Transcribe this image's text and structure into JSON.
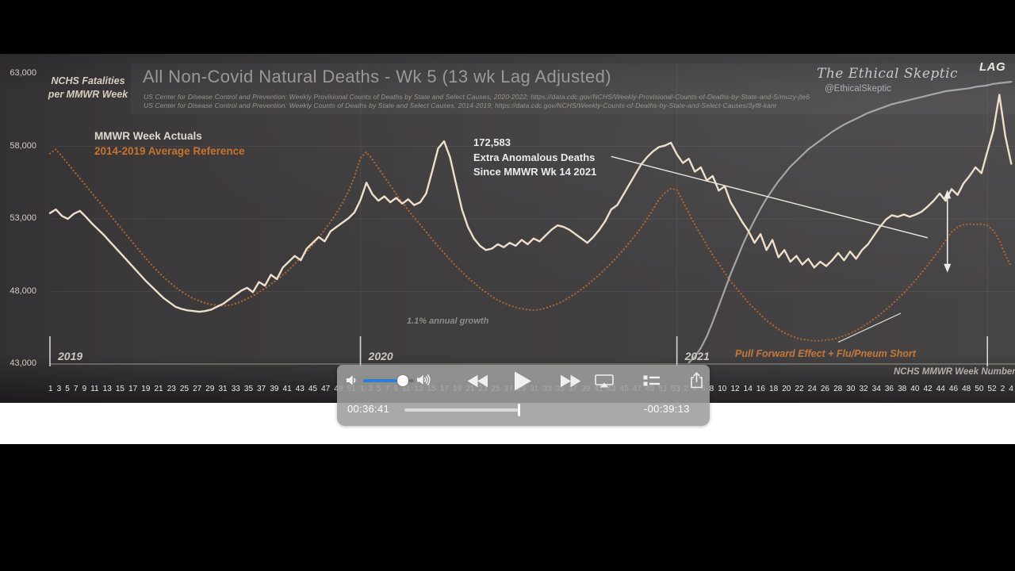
{
  "chart": {
    "title": "All Non-Covid Natural Deaths - Wk 5 (13 wk Lag Adjusted)",
    "source_line1": "US Center for Disease Control and Prevention: Weekly  Provisional Counts of Deaths by State and Select Causes, 2020-2022; https://data.cdc.gov/NCHS/Weekly-Provisional-Counts-of-Deaths-by-State-and-S/muzy-jte6",
    "source_line2": "US Center for Disease Control and Prevention: Weekly  Counts of Deaths by State and Select Causes, 2014-2019; https://data.cdc.gov/NCHS/Weekly-Counts-of-Deaths-by-State-and-Select-Causes/3yf8-kanr",
    "watermark": "The Ethical Skeptic",
    "watermark_handle": "@EthicalSkeptic",
    "corner_tag": "LAG",
    "y_axis_title_line1": "NCHS Fatalities",
    "y_axis_title_line2": "per MMWR Week",
    "legend": [
      {
        "label": "MMWR Week Actuals",
        "color": "#ded8cd"
      },
      {
        "label": "2014-2019  Average Reference",
        "color": "#c5742f"
      }
    ],
    "annotation_line1": "172,583",
    "annotation_line2": "Extra Anomalous Deaths",
    "annotation_line3": "Since MMWR Wk 14 2021",
    "growth_note": "1.1% annual growth",
    "pull_forward_note": "Pull Forward Effect + Flu/Pneum Short",
    "x_axis_title": "NCHS MMWR Week Number"
  },
  "chart_data": {
    "type": "line",
    "title": "All Non-Covid Natural Deaths - Wk 5 (13 wk Lag Adjusted)",
    "ylabel": "NCHS Fatalities per MMWR Week",
    "xlabel": "NCHS MMWR Week Number",
    "ylim": [
      43000,
      63000
    ],
    "grid": "faint horizontal at 5,000 steps, vertical at year starts",
    "legend_position": "top-left inside plot",
    "y_ticks": [
      {
        "label": "63,000",
        "value": 63000
      },
      {
        "label": "58,000",
        "value": 58000
      },
      {
        "label": "53,000",
        "value": 53000
      },
      {
        "label": "48,000",
        "value": 48000
      },
      {
        "label": "43,000",
        "value": 43000
      }
    ],
    "years": [
      {
        "label": "2019",
        "week_index": 0
      },
      {
        "label": "2020",
        "week_index": 52
      },
      {
        "label": "2021",
        "week_index": 105
      }
    ],
    "year_ticks": [
      0,
      52,
      105,
      157
    ],
    "week_labels": [
      "1",
      "3",
      "5",
      "7",
      "9",
      "11",
      "13",
      "15",
      "17",
      "19",
      "21",
      "23",
      "25",
      "27",
      "29",
      "31",
      "33",
      "35",
      "37",
      "39",
      "41",
      "43",
      "45",
      "47",
      "49",
      "51",
      "1",
      "3",
      "5",
      "7",
      "9",
      "11",
      "13",
      "15",
      "17",
      "19",
      "21",
      "23",
      "25",
      "27",
      "29",
      "31",
      "33",
      "35",
      "37",
      "39",
      "41",
      "43",
      "45",
      "47",
      "49",
      "51",
      "53",
      "2",
      "4",
      "6",
      "8",
      "10",
      "12",
      "14",
      "16",
      "18",
      "20",
      "22",
      "24",
      "26",
      "28",
      "30",
      "32",
      "34",
      "36",
      "38",
      "40",
      "42",
      "44",
      "46",
      "48",
      "50",
      "52",
      "2",
      "4"
    ],
    "series": [
      {
        "name": "2014-2019 Average Reference",
        "color": "#b06a35",
        "style": "dotted",
        "width": 2.2,
        "opacity": 0.95,
        "start_index": 0,
        "values": [
          57500,
          57800,
          57300,
          56800,
          56300,
          55800,
          55300,
          54800,
          54300,
          53800,
          53300,
          52800,
          52300,
          51800,
          51300,
          50800,
          50300,
          49850,
          49400,
          49000,
          48650,
          48300,
          48000,
          47750,
          47500,
          47350,
          47200,
          47100,
          47050,
          47000,
          47050,
          47150,
          47300,
          47500,
          47700,
          47950,
          48200,
          48500,
          48800,
          49150,
          49500,
          49900,
          50300,
          50750,
          51200,
          51700,
          52250,
          52800,
          53400,
          54100,
          54900,
          55900,
          57200,
          57600,
          57100,
          56500,
          55900,
          55300,
          54700,
          54150,
          53600,
          53100,
          52600,
          52100,
          51600,
          51100,
          50650,
          50200,
          49750,
          49350,
          48950,
          48600,
          48250,
          47950,
          47650,
          47400,
          47200,
          47050,
          46900,
          46800,
          46750,
          46700,
          46750,
          46850,
          47000,
          47150,
          47350,
          47600,
          47850,
          48150,
          48450,
          48800,
          49150,
          49550,
          49950,
          50400,
          50850,
          51350,
          51850,
          52400,
          53000,
          53650,
          54350,
          54800,
          55100,
          55000,
          54200,
          53400,
          52600,
          51900,
          51200,
          50500,
          49900,
          49300,
          48700,
          48200,
          47700,
          47200,
          46800,
          46400,
          46000,
          45700,
          45400,
          45150,
          44950,
          44800,
          44700,
          44650,
          44600,
          44600,
          44650,
          44700,
          44800,
          44950,
          45100,
          45300,
          45550,
          45800,
          46100,
          46400,
          46750,
          47100,
          47500,
          47900,
          48350,
          48800,
          49300,
          49800,
          50350,
          50900,
          51500,
          52100,
          52450,
          52600,
          52650,
          52600,
          52650,
          52550,
          52200,
          51500,
          50500,
          49700
        ]
      },
      {
        "name": "Lag-adjusted provisional completeness curve",
        "color": "#b9bdbd",
        "style": "solid",
        "width": 2.2,
        "opacity": 0.8,
        "start_index": 107,
        "values": [
          43100,
          43500,
          44100,
          44900,
          45900,
          47000,
          48100,
          49200,
          50200,
          51200,
          52100,
          52900,
          53700,
          54400,
          55000,
          55600,
          56100,
          56600,
          57000,
          57400,
          57800,
          58100,
          58400,
          58700,
          59000,
          59250,
          59500,
          59700,
          59900,
          60100,
          60300,
          60450,
          60600,
          60750,
          60900,
          61000,
          61100,
          61200,
          61300,
          61400,
          61500,
          61600,
          61700,
          61800,
          61850,
          61900,
          61950,
          62000,
          62100,
          62150,
          62200,
          62300,
          62350,
          62400,
          62450
        ]
      },
      {
        "name": "MMWR Week Actuals",
        "color": "#eedfcb",
        "style": "solid",
        "width": 2.4,
        "opacity": 1,
        "start_index": 0,
        "values": [
          53400,
          53650,
          53200,
          53000,
          53350,
          53550,
          53150,
          52700,
          52300,
          51900,
          51450,
          51000,
          50550,
          50100,
          49650,
          49200,
          48750,
          48350,
          47950,
          47550,
          47250,
          46950,
          46800,
          46700,
          46650,
          46600,
          46650,
          46750,
          46950,
          47150,
          47450,
          47750,
          48050,
          48250,
          47950,
          48650,
          48400,
          49150,
          48850,
          49650,
          50050,
          50450,
          50150,
          50950,
          51350,
          51750,
          51450,
          52150,
          52450,
          52750,
          53050,
          53450,
          54300,
          55500,
          54700,
          54250,
          54550,
          54150,
          54450,
          54050,
          54350,
          53950,
          54150,
          54750,
          56250,
          57850,
          58350,
          57250,
          55450,
          53650,
          52450,
          51650,
          51150,
          50850,
          50950,
          51250,
          51050,
          51350,
          51150,
          51550,
          51250,
          51650,
          51450,
          51850,
          52250,
          52550,
          52450,
          52250,
          51950,
          51650,
          51350,
          51750,
          52250,
          52850,
          53650,
          53950,
          54650,
          55350,
          56050,
          56750,
          57250,
          57650,
          57950,
          58050,
          58250,
          57450,
          56850,
          57150,
          56250,
          56550,
          55650,
          55950,
          54950,
          55250,
          54150,
          53450,
          52750,
          52150,
          51350,
          51950,
          50850,
          51550,
          50350,
          50850,
          50050,
          50450,
          49850,
          50250,
          49650,
          50050,
          49750,
          50150,
          50650,
          50150,
          50750,
          50250,
          50850,
          51250,
          51850,
          52450,
          52950,
          53250,
          53150,
          53300,
          53150,
          53300,
          53500,
          53850,
          54250,
          54750,
          54250,
          55050,
          54650,
          55450,
          55950,
          56550,
          56150,
          57650,
          59100,
          61550,
          58700,
          56800
        ]
      }
    ],
    "overlays": [
      {
        "type": "trendline",
        "from": {
          "week_index": 94,
          "value": 57300
        },
        "to": {
          "week_index": 147,
          "value": 51700
        },
        "color": "#e9e7e3",
        "width": 1.4
      },
      {
        "type": "varrow",
        "week_index": 150.3,
        "top_value": 55000,
        "bottom_value": 49300
      },
      {
        "type": "trendline",
        "from": {
          "week_index": 132,
          "value": 44500
        },
        "to": {
          "week_index": 142.5,
          "value": 46500
        },
        "color": "#d9d6d2",
        "width": 1.3
      }
    ]
  },
  "player": {
    "elapsed": "00:36:41",
    "remaining": "-00:39:13",
    "progress_percent": 48,
    "volume_percent": 78,
    "accent_color": "#2f7cd7",
    "icons": [
      "speaker-low-icon",
      "volume-slider",
      "speaker-high-icon",
      "rewind-icon",
      "play-icon",
      "fast-forward-icon",
      "airplay-icon",
      "playlist-icon",
      "share-icon"
    ]
  }
}
